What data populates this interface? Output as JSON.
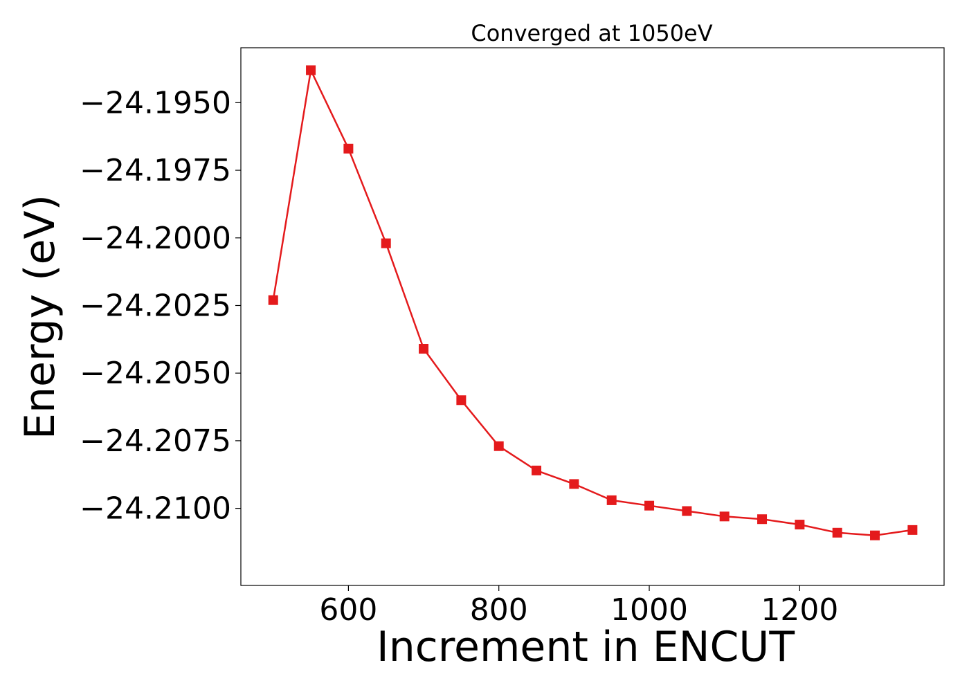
{
  "chart_data": {
    "type": "line",
    "title": "Converged at 1050eV",
    "xlabel": "Increment in ENCUT",
    "ylabel": "Energy (eV)",
    "x": [
      500,
      550,
      600,
      650,
      700,
      750,
      800,
      850,
      900,
      950,
      1000,
      1050,
      1100,
      1150,
      1200,
      1250,
      1300,
      1350
    ],
    "series": [
      {
        "values": [
          -24.2023,
          -24.1938,
          -24.1967,
          -24.2002,
          -24.2041,
          -24.206,
          -24.2077,
          -24.2086,
          -24.2091,
          -24.2097,
          -24.2099,
          -24.2101,
          -24.2103,
          -24.2104,
          -24.2106,
          -24.2109,
          -24.211,
          -24.2108
        ],
        "color": "#e41a1c",
        "marker": "square"
      }
    ],
    "xticks": [
      600,
      800,
      1000,
      1200
    ],
    "xtick_labels": [
      "600",
      "800",
      "1000",
      "1200"
    ],
    "yticks": [
      -24.195,
      -24.1975,
      -24.2,
      -24.2025,
      -24.205,
      -24.2075,
      -24.21
    ],
    "ytick_labels": [
      "−24.1950",
      "−24.1975",
      "−24.2000",
      "−24.2025",
      "−24.2050",
      "−24.2075",
      "−24.2100"
    ],
    "xlim": [
      457,
      1392
    ],
    "ylim": [
      -24.21285,
      -24.19297
    ],
    "grid": false,
    "legend": "none"
  }
}
